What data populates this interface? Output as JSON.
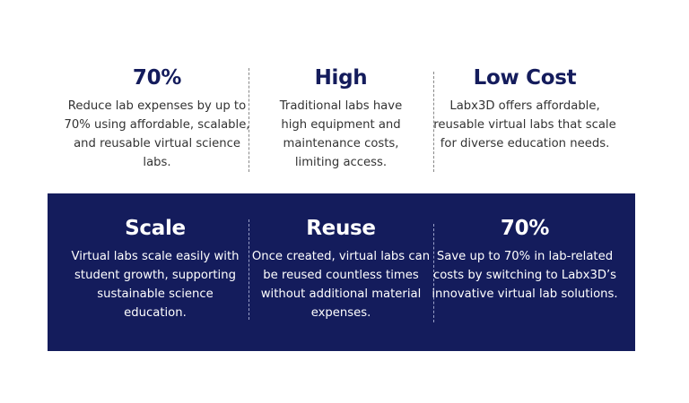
{
  "top_row": [
    {
      "title": "70%",
      "text": "Reduce lab expenses by up to 70% using affordable, scalable, and reusable virtual science labs."
    },
    {
      "title": "High",
      "text": "Traditional labs have high equipment and maintenance costs, limiting access."
    },
    {
      "title": "Low Cost",
      "text": "Labx3D offers affordable, reusable virtual labs that scale for diverse education needs."
    }
  ],
  "bottom_row": [
    {
      "title": "Scale",
      "text": "Virtual labs scale easily with student growth, supporting sustainable science education."
    },
    {
      "title": "Reuse",
      "text": "Once created, virtual labs can be reused countless times without additional material expenses."
    },
    {
      "title": "70%",
      "text": "Save up to 70% in lab-related costs by switching to Labx3D’s innovative virtual lab solutions."
    }
  ],
  "colors": {
    "navy": "#141c5c",
    "text": "#333333"
  }
}
